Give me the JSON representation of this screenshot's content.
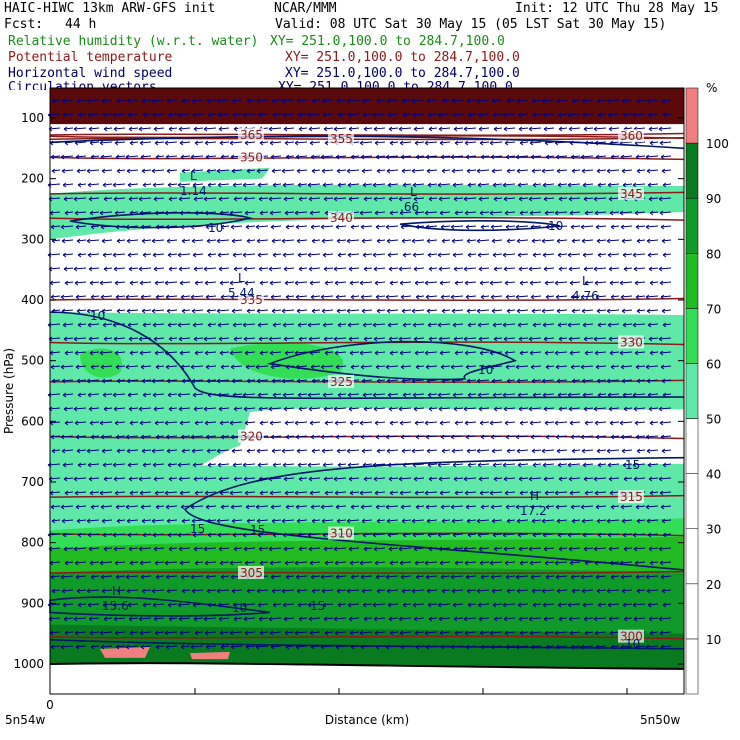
{
  "header": {
    "title": "HAIC-HIWC 13km ARW-GFS init",
    "center": "NCAR/MMM",
    "init": "Init: 12 UTC Thu 28 May 15",
    "fcst_label": "Fcst:",
    "fcst_value": "44 h",
    "valid": "Valid: 08 UTC Sat 30 May 15 (05 LST Sat 30 May 15)"
  },
  "fields": [
    {
      "name": "Relative humidity (w.r.t. water)",
      "xy": "XY= 251.0,100.0 to 284.7,100.0",
      "color": "#1a8a1a"
    },
    {
      "name": "Potential temperature",
      "xy": "XY= 251.0,100.0 to 284.7,100.0",
      "color": "#8b1a1a"
    },
    {
      "name": "Horizontal wind speed",
      "xy": "XY= 251.0,100.0 to 284.7,100.0",
      "color": "#000066"
    },
    {
      "name": "Circulation vectors",
      "xy": "XY= 251.0,100.0 to 284.7,100.0",
      "color": "#000066"
    }
  ],
  "chart_data": {
    "type": "heatmap",
    "ylabel": "Pressure (hPa)",
    "xlabel": "Distance (km)",
    "x_ticks": [
      "0"
    ],
    "x_end_labels": [
      "5n54w",
      "5n50w"
    ],
    "y_ticks": [
      100,
      200,
      300,
      400,
      500,
      600,
      700,
      800,
      900,
      1000
    ],
    "ylim": [
      1050,
      80
    ],
    "colorbar": {
      "unit": "%",
      "levels": [
        10,
        20,
        30,
        40,
        50,
        60,
        70,
        80,
        90,
        100
      ],
      "colors": [
        "#ffffff",
        "#ffffff",
        "#ffffff",
        "#ffffff",
        "#ffffff",
        "#5fe8a8",
        "#33dd55",
        "#22bb22",
        "#0f9a2a",
        "#0a7a20",
        "#f08080"
      ]
    },
    "theta_contours": [
      {
        "value": "365",
        "p": 128
      },
      {
        "value": "360",
        "p": 130
      },
      {
        "value": "355",
        "p": 135
      },
      {
        "value": "350",
        "p": 165
      },
      {
        "value": "345",
        "p": 225
      },
      {
        "value": "340",
        "p": 265
      },
      {
        "value": "335",
        "p": 400
      },
      {
        "value": "330",
        "p": 470
      },
      {
        "value": "325",
        "p": 535
      },
      {
        "value": "320",
        "p": 625
      },
      {
        "value": "315",
        "p": 725
      },
      {
        "value": "310",
        "p": 785
      },
      {
        "value": "305",
        "p": 850
      },
      {
        "value": "300",
        "p": 955
      }
    ],
    "wind_labels": [
      "10",
      "10",
      "10",
      "10",
      "10",
      "15",
      "15",
      "15",
      "15",
      "10"
    ],
    "extrema": [
      {
        "kind": "L",
        "value": "1.14"
      },
      {
        "kind": "L",
        "value": ".66"
      },
      {
        "kind": "L",
        "value": "5.44"
      },
      {
        "kind": "L",
        "value": "4.76"
      },
      {
        "kind": "H",
        "value": "17.2"
      },
      {
        "kind": "H",
        "value": "15.6"
      }
    ]
  }
}
